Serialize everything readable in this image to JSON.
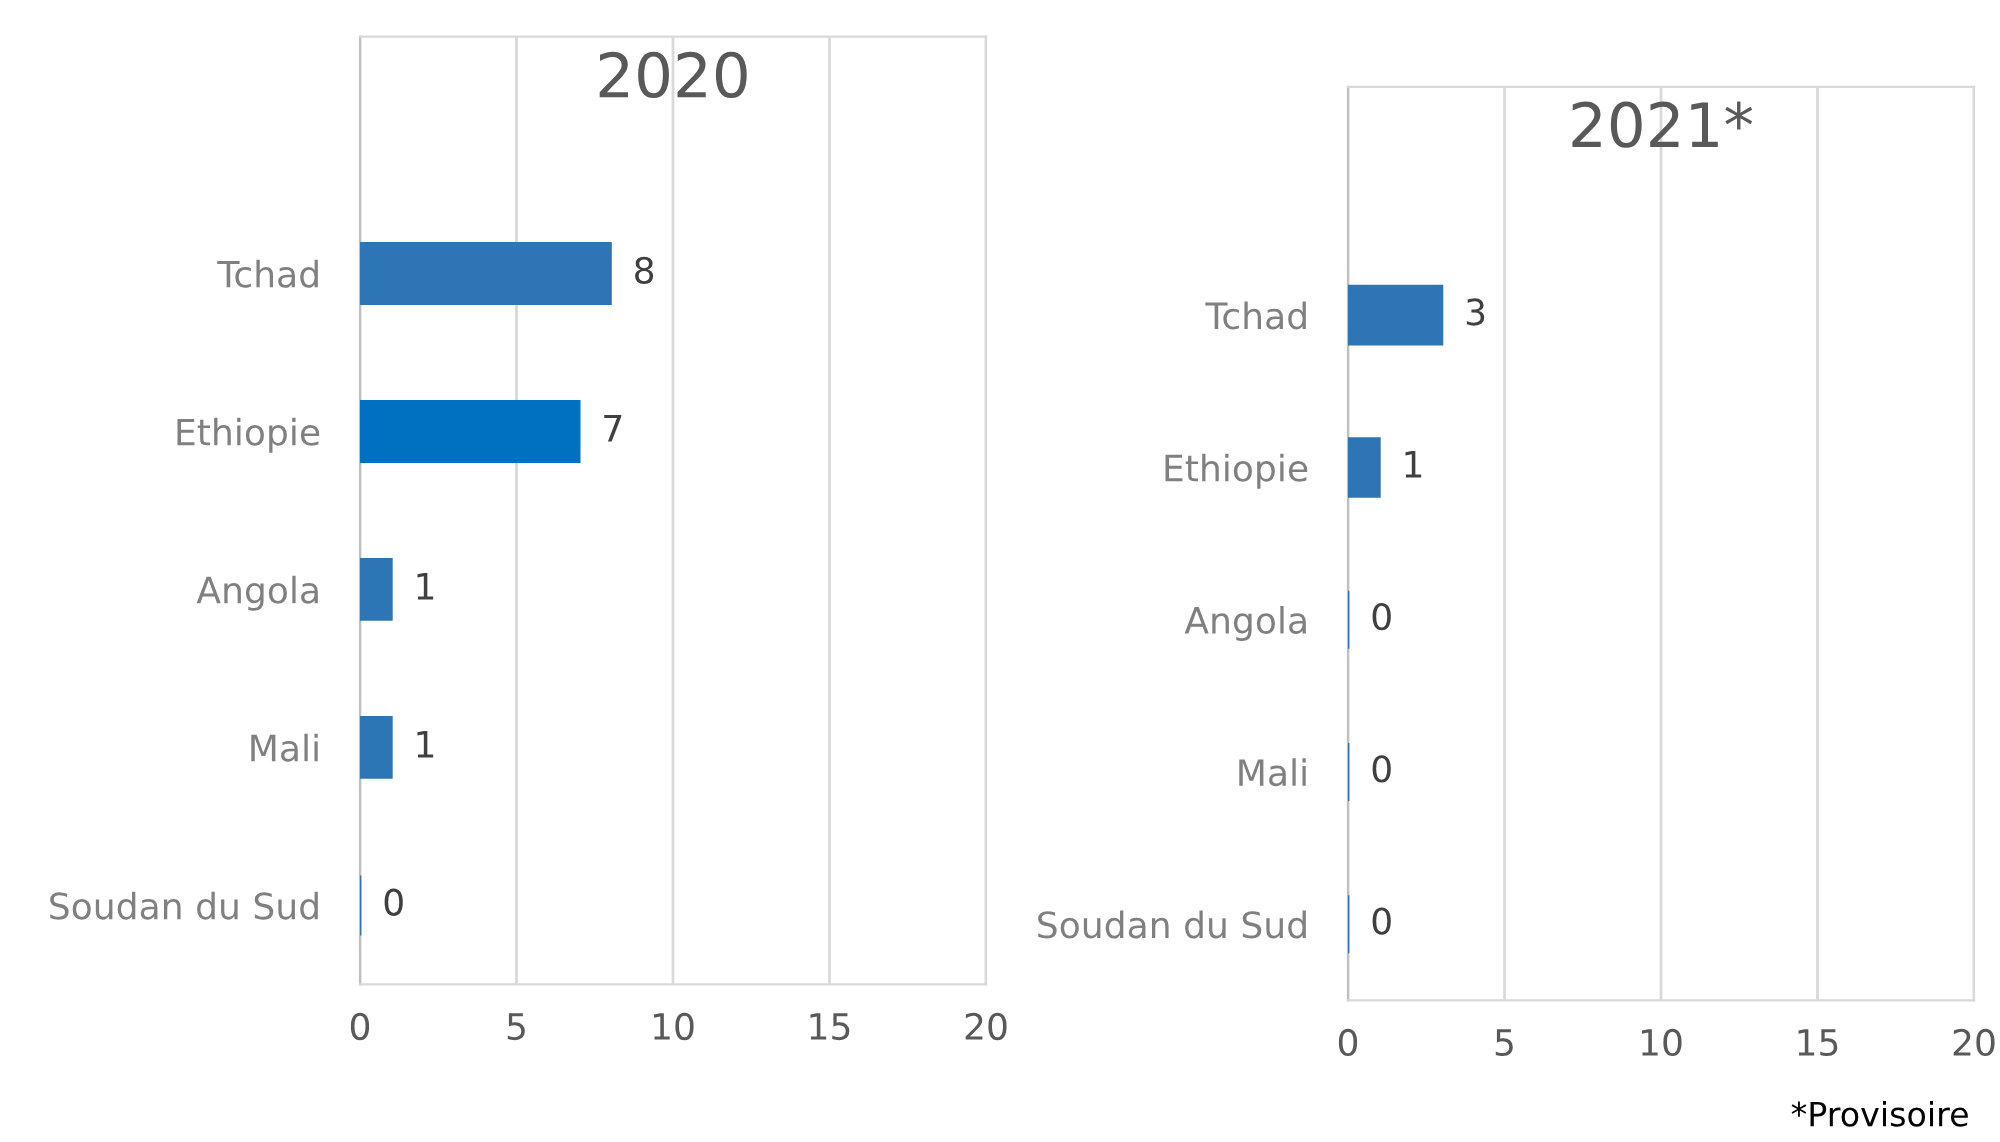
{
  "chart_data": [
    {
      "type": "bar",
      "orientation": "horizontal",
      "title": "2020",
      "categories": [
        "Tchad",
        "Ethiopie",
        "Angola",
        "Mali",
        "Soudan du Sud"
      ],
      "values": [
        8,
        7,
        1,
        1,
        0
      ],
      "colors": [
        "#2e75b6",
        "#0070c0",
        "#2e75b6",
        "#2e75b6",
        "#2e75b6"
      ],
      "xlim": [
        0,
        20
      ],
      "xticks": [
        0,
        5,
        10,
        15,
        20
      ],
      "grid": "x",
      "data_labels": true
    },
    {
      "type": "bar",
      "orientation": "horizontal",
      "title": "2021*",
      "categories": [
        "Tchad",
        "Ethiopie",
        "Angola",
        "Mali",
        "Soudan du Sud"
      ],
      "values": [
        3,
        1,
        0,
        0,
        0
      ],
      "colors": [
        "#2e75b6",
        "#2e75b6",
        "#2e75b6",
        "#2e75b6",
        "#2e75b6"
      ],
      "xlim": [
        0,
        20
      ],
      "xticks": [
        0,
        5,
        10,
        15,
        20
      ],
      "grid": "x",
      "data_labels": true,
      "annotations": [
        "*Provisoire"
      ]
    }
  ]
}
